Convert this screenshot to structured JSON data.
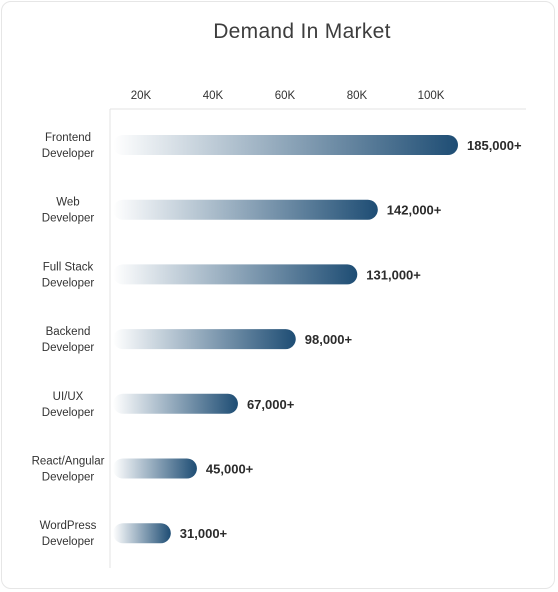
{
  "chart_data": {
    "type": "bar",
    "orientation": "horizontal",
    "title": "Demand In Market",
    "x_ticks": [
      "20K",
      "40K",
      "60K",
      "80K",
      "100K"
    ],
    "categories": [
      [
        "Frontend",
        "Developer"
      ],
      [
        "Web",
        "Developer"
      ],
      [
        "Full Stack",
        "Developer"
      ],
      [
        "Backend",
        "Developer"
      ],
      [
        "UI/UX",
        "Developer"
      ],
      [
        "React/Angular",
        "Developer"
      ],
      [
        "WordPress",
        "Developer"
      ]
    ],
    "values": [
      185000,
      142000,
      131000,
      98000,
      67000,
      45000,
      31000
    ],
    "value_labels": [
      "185,000+",
      "142,000+",
      "131,000+",
      "98,000+",
      "67,000+",
      "45,000+",
      "31,000+"
    ],
    "colors": {
      "bar_start": "#ffffff",
      "bar_end": "#1e4d74",
      "axis": "#e3e3e3"
    },
    "grid": false
  }
}
